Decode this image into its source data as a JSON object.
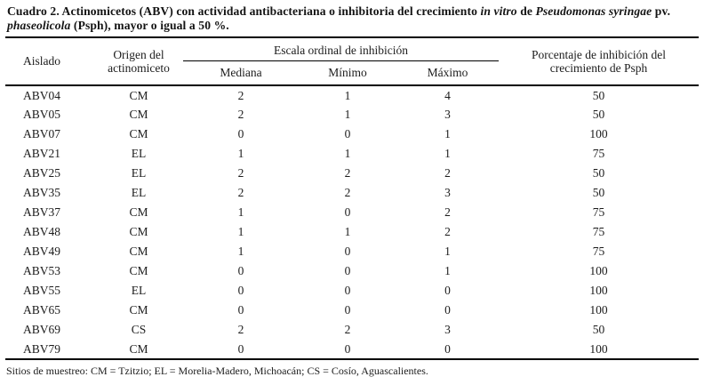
{
  "title": {
    "segments": [
      "Cuadro 2. Actinomicetos (ABV) con actividad antibacteriana o inhibitoria del crecimiento ",
      "in vitro",
      " de ",
      "Pseudomonas syringae",
      " pv. ",
      "phaseolicola",
      " (Psph), mayor o igual a 50 %."
    ]
  },
  "table": {
    "headers": {
      "aislado": "Aislado",
      "origen": "Origen del actinomiceto",
      "escala_group": "Escala ordinal de inhibición",
      "mediana": "Mediana",
      "minimo": "Mínimo",
      "maximo": "Máximo",
      "porcentaje": "Porcentaje de inhibición del crecimiento de Psph"
    },
    "rows": [
      [
        "ABV04",
        "CM",
        "2",
        "1",
        "4",
        "50"
      ],
      [
        "ABV05",
        "CM",
        "2",
        "1",
        "3",
        "50"
      ],
      [
        "ABV07",
        "CM",
        "0",
        "0",
        "1",
        "100"
      ],
      [
        "ABV21",
        "EL",
        "1",
        "1",
        "1",
        "75"
      ],
      [
        "ABV25",
        "EL",
        "2",
        "2",
        "2",
        "50"
      ],
      [
        "ABV35",
        "EL",
        "2",
        "2",
        "3",
        "50"
      ],
      [
        "ABV37",
        "CM",
        "1",
        "0",
        "2",
        "75"
      ],
      [
        "ABV48",
        "CM",
        "1",
        "1",
        "2",
        "75"
      ],
      [
        "ABV49",
        "CM",
        "1",
        "0",
        "1",
        "75"
      ],
      [
        "ABV53",
        "CM",
        "0",
        "0",
        "1",
        "100"
      ],
      [
        "ABV55",
        "EL",
        "0",
        "0",
        "0",
        "100"
      ],
      [
        "ABV65",
        "CM",
        "0",
        "0",
        "0",
        "100"
      ],
      [
        "ABV69",
        "CS",
        "2",
        "2",
        "3",
        "50"
      ],
      [
        "ABV79",
        "CM",
        "0",
        "0",
        "0",
        "100"
      ]
    ]
  },
  "footnote": "Sitios de muestreo: CM = Tzitzio; EL = Morelia-Madero, Michoacán; CS = Cosío, Aguascalientes.",
  "colors": {
    "text": "#1c1c1c",
    "rule": "#000000",
    "background": "#ffffff"
  }
}
